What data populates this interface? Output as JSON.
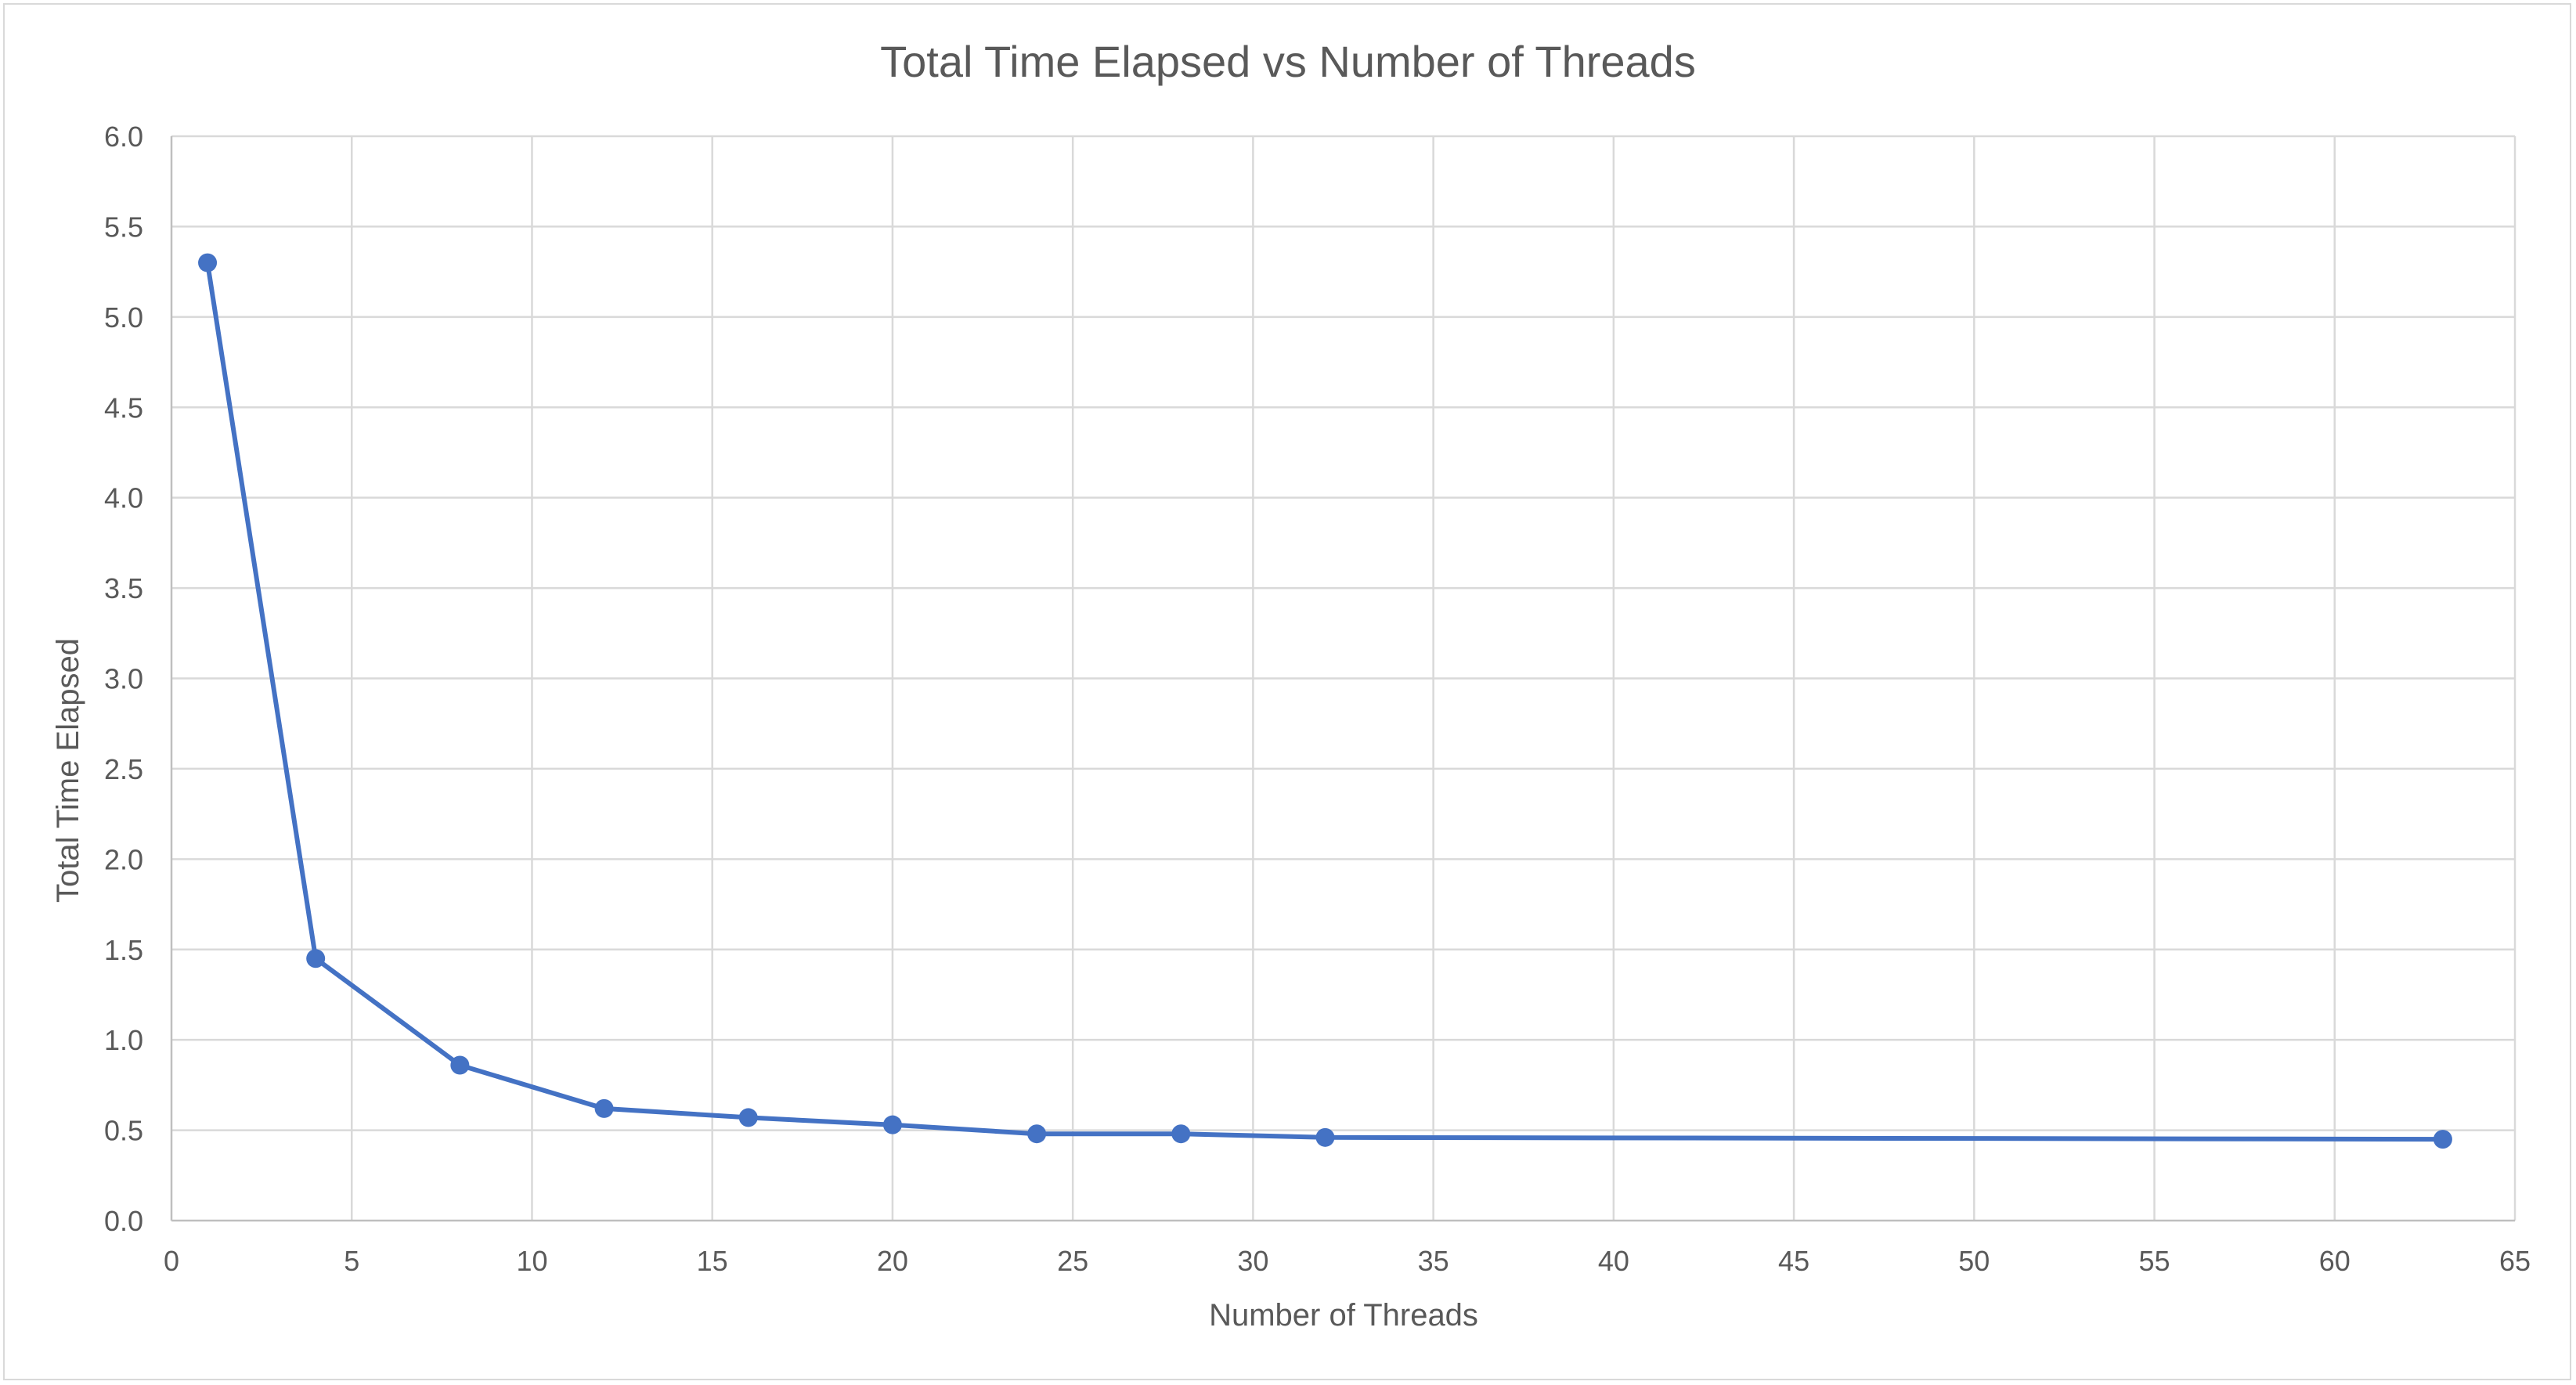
{
  "chart_data": {
    "type": "line",
    "title": "Total Time Elapsed vs Number of Threads",
    "xlabel": "Number of Threads",
    "ylabel": "Total Time Elapsed",
    "xlim": [
      0,
      65
    ],
    "ylim": [
      0,
      6
    ],
    "x_ticks": [
      "0",
      "5",
      "10",
      "15",
      "20",
      "25",
      "30",
      "35",
      "40",
      "45",
      "50",
      "55",
      "60",
      "65"
    ],
    "y_ticks": [
      "0.0",
      "0.5",
      "1.0",
      "1.5",
      "2.0",
      "2.5",
      "3.0",
      "3.5",
      "4.0",
      "4.5",
      "5.0",
      "5.5",
      "6.0"
    ],
    "grid": true,
    "legend": "none",
    "series": [
      {
        "color": "#4472c4",
        "marker": "circle",
        "x": [
          1,
          4,
          8,
          12,
          16,
          20,
          24,
          28,
          32,
          63
        ],
        "values": [
          5.3,
          1.45,
          0.86,
          0.62,
          0.57,
          0.53,
          0.48,
          0.48,
          0.46,
          0.45
        ]
      }
    ]
  }
}
